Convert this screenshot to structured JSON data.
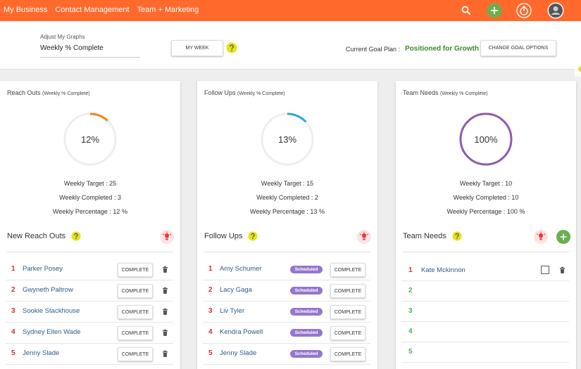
{
  "nav": {
    "links": [
      "My Business",
      "Contact Management",
      "Team + Marketing"
    ]
  },
  "toolbar": {
    "graph_label": "Adjust My Graphs",
    "graph_value": "Weekly % Complete",
    "week_button": "MY WEEK",
    "goal_label": "Current Goal Plan :",
    "goal_value": "Positioned for Growth",
    "goal_button": "CHANGE GOAL OPTIONS"
  },
  "cards": [
    {
      "title": "Reach Outs",
      "title_note": "(Weekly % Complete)",
      "color": "#f5841f",
      "progress": {
        "value": 12,
        "label": "12%"
      },
      "stats": [
        "Weekly Target : 25",
        "Weekly Completed : 3",
        "Weekly Percentage : 12 %"
      ],
      "list_title": "New Reach Outs",
      "rows": [
        {
          "number": 1,
          "name": "Parker Posey",
          "button": "COMPLETE"
        },
        {
          "number": 2,
          "name": "Gwyneth Paltrow",
          "button": "COMPLETE"
        },
        {
          "number": 3,
          "name": "Sookie Stackhouse",
          "button": "COMPLETE"
        },
        {
          "number": 4,
          "name": "Sydney Ellen Wade",
          "button": "COMPLETE"
        },
        {
          "number": 5,
          "name": "Jenny Slade",
          "button": "COMPLETE"
        }
      ]
    },
    {
      "title": "Follow Ups",
      "title_note": "(Weekly % Complete)",
      "color": "#29a8e0",
      "progress": {
        "value": 13,
        "label": "13%"
      },
      "stats": [
        "Weekly Target : 15",
        "Weekly Completed : 2",
        "Weekly Percentage : 13 %"
      ],
      "list_title": "Follow Ups",
      "rows": [
        {
          "number": 1,
          "name": "Amy Schumer",
          "tag": "Scheduled",
          "button": "COMPLETE"
        },
        {
          "number": 2,
          "name": "Lacy Gaga",
          "tag": "Scheduled",
          "button": "COMPLETE"
        },
        {
          "number": 3,
          "name": "Liv Tyler",
          "tag": "Scheduled",
          "button": "COMPLETE"
        },
        {
          "number": 4,
          "name": "Kendra Powell",
          "tag": "Scheduled",
          "button": "COMPLETE"
        },
        {
          "number": 5,
          "name": "Jenny Slade",
          "tag": "Scheduled",
          "button": "COMPLETE"
        }
      ]
    },
    {
      "title": "Team Needs",
      "title_note": "(Weekly % Complete)",
      "color": "#8e5bb5",
      "progress": {
        "value": 100,
        "label": "100%"
      },
      "stats": [
        "Weekly Target : 10",
        "Weekly Completed : 10",
        "Weekly Percentage : 100 %"
      ],
      "list_title": "Team Needs",
      "rows": [
        {
          "number": 1,
          "name": "Kate Mckinnon"
        },
        {
          "number": 2
        },
        {
          "number": 3
        },
        {
          "number": 4
        },
        {
          "number": 5
        }
      ]
    }
  ]
}
